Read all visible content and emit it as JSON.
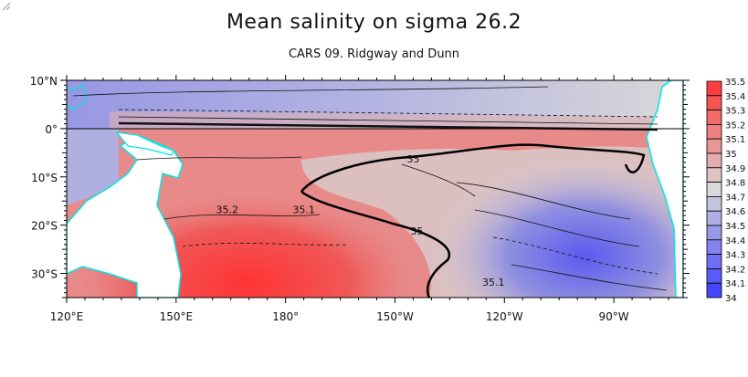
{
  "title": "Mean salinity on sigma 26.2",
  "subtitle": "CARS 09. Ridgway and Dunn",
  "map": {
    "x_ticks": [
      {
        "lon": 120,
        "label": "120°E"
      },
      {
        "lon": 150,
        "label": "150°E"
      },
      {
        "lon": 180,
        "label": "180°"
      },
      {
        "lon": 210,
        "label": "150°W"
      },
      {
        "lon": 240,
        "label": "120°W"
      },
      {
        "lon": 270,
        "label": "90°W"
      }
    ],
    "y_ticks": [
      {
        "lat": 10,
        "label": "10°N"
      },
      {
        "lat": 0,
        "label": "0°"
      },
      {
        "lat": -10,
        "label": "10°S"
      },
      {
        "lat": -20,
        "label": "20°S"
      },
      {
        "lat": -30,
        "label": "30°S"
      }
    ],
    "lon_range": [
      120,
      289
    ],
    "lat_range": [
      -35,
      10
    ],
    "contour_labels": [
      {
        "text": "35",
        "lon": 215,
        "lat": -7
      },
      {
        "text": "35.2",
        "lon": 164,
        "lat": -17.5
      },
      {
        "text": "35.1",
        "lon": 185,
        "lat": -17.5
      },
      {
        "text": "35",
        "lon": 216,
        "lat": -22
      },
      {
        "text": "35.1",
        "lon": 237,
        "lat": -32.5
      }
    ],
    "coastline_color": "#00e5e5",
    "land_color": "#ffffff"
  },
  "colorbar": {
    "levels": [
      "35.5",
      "35.4",
      "35.3",
      "35.2",
      "35.1",
      "35",
      "34.9",
      "34.8",
      "34.7",
      "34.6",
      "34.5",
      "34.4",
      "34.3",
      "34.2",
      "34.1",
      "34"
    ],
    "min": 34,
    "max": 35.5,
    "low_color": "#3a3aff",
    "mid_color": "#d9d9d9",
    "high_color": "#ff3333"
  }
}
